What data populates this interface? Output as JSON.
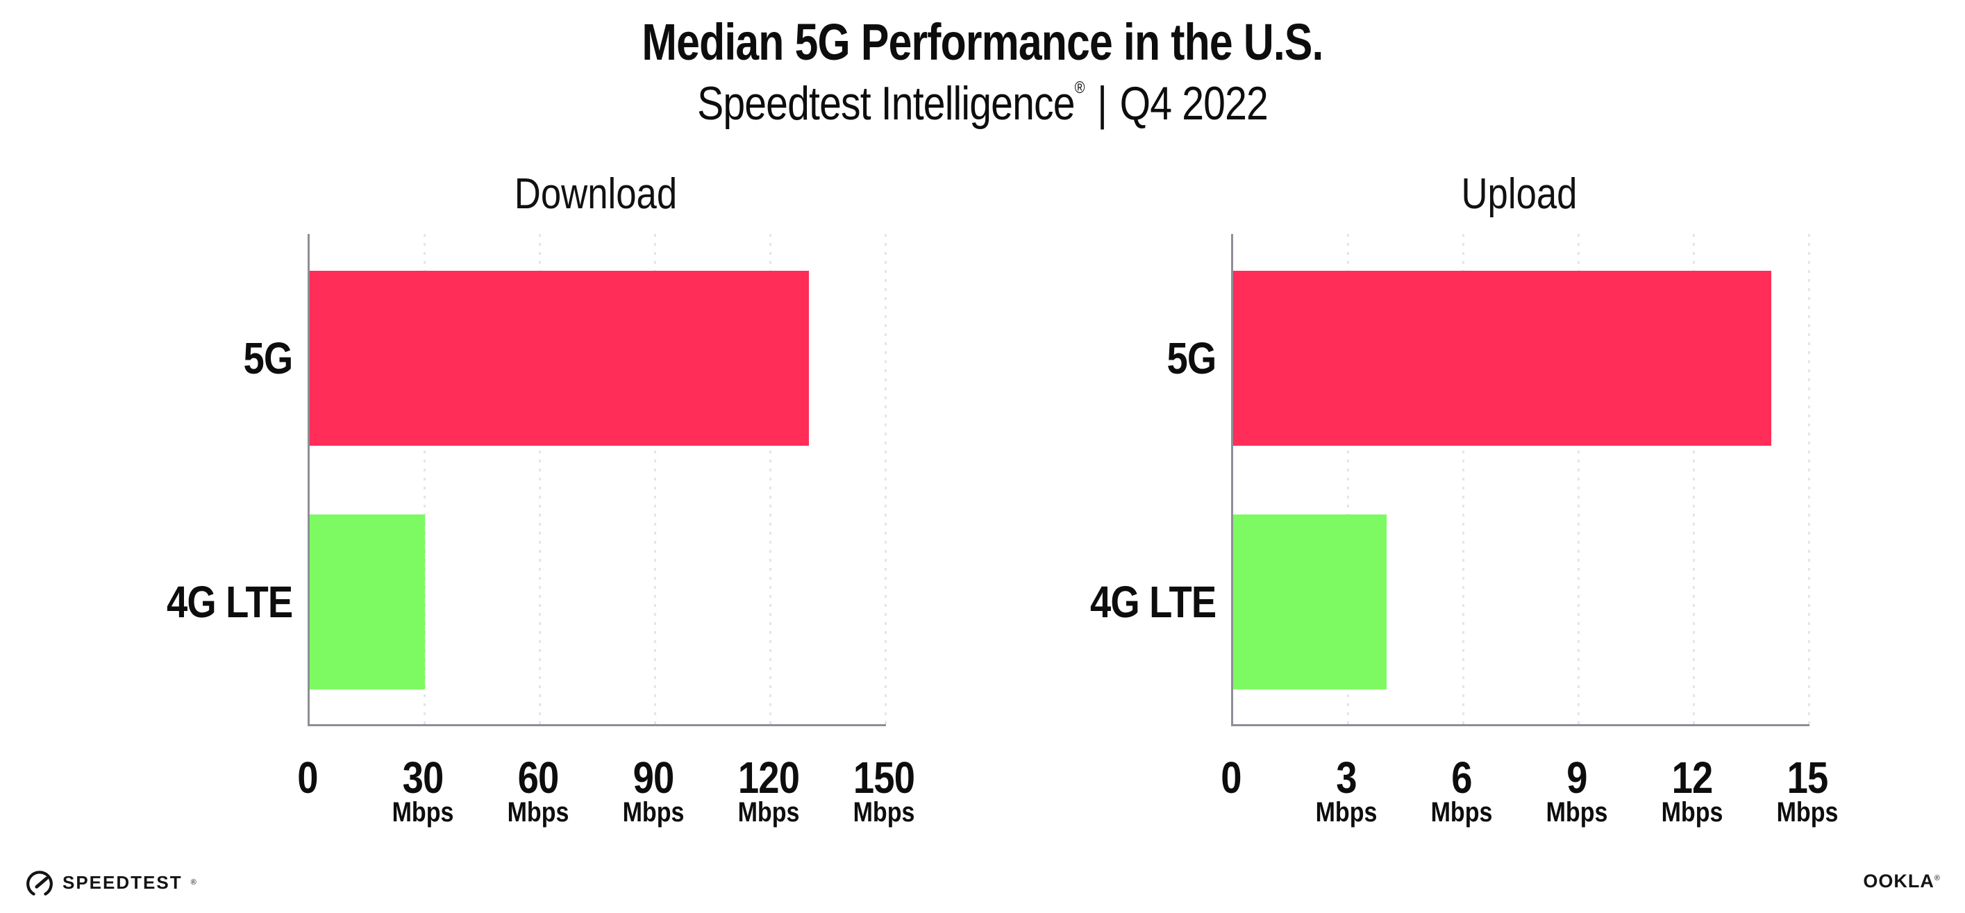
{
  "header": {
    "title": "Median 5G Performance in the U.S.",
    "subtitle_brand": "Speedtest Intelligence",
    "subtitle_registered": "®",
    "subtitle_separator": "|",
    "subtitle_period": "Q4 2022"
  },
  "chart_data": [
    {
      "type": "bar",
      "orientation": "horizontal",
      "title": "Download",
      "categories": [
        "5G",
        "4G LTE"
      ],
      "values": [
        130,
        30
      ],
      "value_unit": "Mbps",
      "xlim": [
        0,
        150
      ],
      "xticks": [
        0,
        30,
        60,
        90,
        120,
        150
      ],
      "xtick_unit_label": "Mbps",
      "bar_colors": [
        "#FF2D57",
        "#7DFA62"
      ],
      "grid": "vertical dotted gridline at each tick",
      "legend_position": "none",
      "data_labels": false
    },
    {
      "type": "bar",
      "orientation": "horizontal",
      "title": "Upload",
      "categories": [
        "5G",
        "4G LTE"
      ],
      "values": [
        14,
        4
      ],
      "value_unit": "Mbps",
      "xlim": [
        0,
        15
      ],
      "xticks": [
        0,
        3,
        6,
        9,
        12,
        15
      ],
      "xtick_unit_label": "Mbps",
      "bar_colors": [
        "#FF2D57",
        "#7DFA62"
      ],
      "grid": "vertical dotted gridline at each tick",
      "legend_position": "none",
      "data_labels": false
    }
  ],
  "footer": {
    "speedtest_label": "SPEEDTEST",
    "speedtest_mark": "®",
    "ookla_label": "OOKLA",
    "ookla_mark": "®"
  },
  "colors": {
    "bar_5g": "#FF2D57",
    "bar_4g_lte": "#7DFA62",
    "axis_line": "#8E8E96",
    "gridline": "#E4E4EE",
    "text": "#0D0D0D",
    "background": "#FFFFFF"
  }
}
